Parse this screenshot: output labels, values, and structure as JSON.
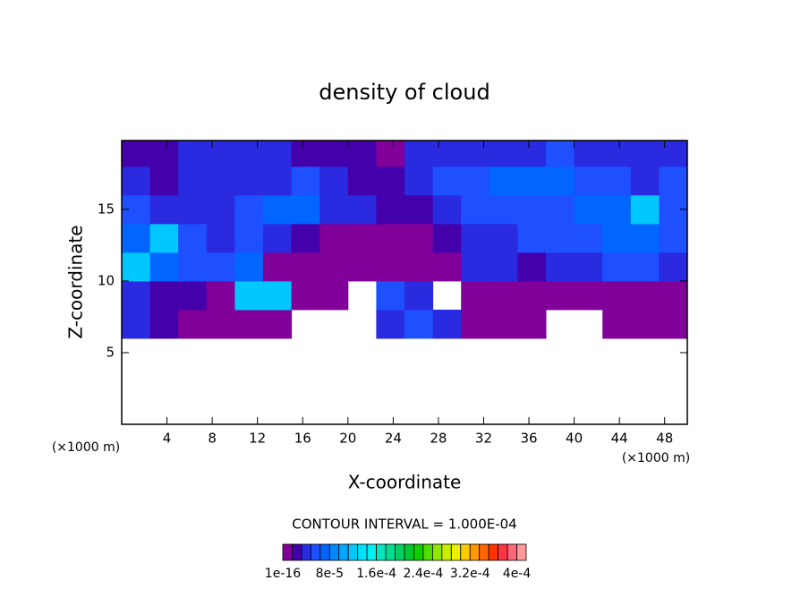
{
  "chart_data": {
    "type": "contour",
    "title": "density of cloud",
    "xlabel": "X-coordinate",
    "ylabel": "Z-coordinate",
    "x_unit": "(×1000 m)",
    "y_unit": "(×1000 m)",
    "xlim": [
      0,
      50
    ],
    "ylim": [
      0,
      19.8
    ],
    "xticks": [
      4,
      8,
      12,
      16,
      20,
      24,
      28,
      32,
      36,
      40,
      44,
      48
    ],
    "yticks": [
      5,
      10,
      15
    ],
    "x": [
      1.25,
      3.75,
      6.25,
      8.75,
      11.25,
      13.75,
      16.25,
      18.75,
      21.25,
      23.75,
      26.25,
      28.75,
      31.25,
      33.75,
      36.25,
      38.75,
      41.25,
      43.75,
      46.25,
      48.75
    ],
    "y": [
      1,
      3,
      5,
      7,
      9,
      11,
      13,
      15,
      17,
      19
    ],
    "z": [
      [
        null,
        null,
        null,
        null,
        null,
        null,
        null,
        null,
        null,
        null,
        null,
        null,
        null,
        null,
        null,
        null,
        null,
        null,
        null,
        null
      ],
      [
        null,
        null,
        null,
        null,
        null,
        null,
        null,
        null,
        null,
        null,
        null,
        null,
        null,
        null,
        null,
        null,
        null,
        null,
        null,
        null
      ],
      [
        null,
        null,
        null,
        null,
        null,
        null,
        null,
        null,
        null,
        null,
        null,
        null,
        null,
        null,
        null,
        null,
        null,
        null,
        null,
        null
      ],
      [
        4e-05,
        2e-05,
        1e-16,
        1e-16,
        1e-16,
        1e-16,
        null,
        null,
        null,
        4e-05,
        6e-05,
        4e-05,
        1e-16,
        1e-16,
        1e-16,
        null,
        null,
        1e-16,
        1e-16,
        1e-16
      ],
      [
        4e-05,
        2e-05,
        2e-05,
        1e-16,
        0.00012,
        0.00012,
        1e-16,
        1e-16,
        null,
        6e-05,
        4e-05,
        null,
        1e-16,
        1e-16,
        1e-16,
        1e-16,
        1e-16,
        1e-16,
        1e-16,
        1e-16
      ],
      [
        0.00012,
        8e-05,
        6e-05,
        6e-05,
        8e-05,
        1e-16,
        1e-16,
        1e-16,
        1e-16,
        1e-16,
        1e-16,
        1e-16,
        4e-05,
        4e-05,
        2e-05,
        4e-05,
        4e-05,
        6e-05,
        6e-05,
        4e-05
      ],
      [
        8e-05,
        0.00012,
        6e-05,
        4e-05,
        6e-05,
        4e-05,
        2e-05,
        1e-16,
        1e-16,
        1e-16,
        1e-16,
        2e-05,
        4e-05,
        4e-05,
        6e-05,
        6e-05,
        6e-05,
        8e-05,
        8e-05,
        6e-05
      ],
      [
        6e-05,
        4e-05,
        4e-05,
        4e-05,
        6e-05,
        8e-05,
        8e-05,
        4e-05,
        4e-05,
        2e-05,
        2e-05,
        4e-05,
        6e-05,
        6e-05,
        6e-05,
        6e-05,
        8e-05,
        8e-05,
        0.00012,
        6e-05
      ],
      [
        4e-05,
        2e-05,
        4e-05,
        4e-05,
        4e-05,
        4e-05,
        6e-05,
        4e-05,
        2e-05,
        2e-05,
        4e-05,
        6e-05,
        6e-05,
        8e-05,
        8e-05,
        8e-05,
        6e-05,
        6e-05,
        4e-05,
        6e-05
      ],
      [
        2e-05,
        2e-05,
        4e-05,
        4e-05,
        4e-05,
        4e-05,
        2e-05,
        2e-05,
        2e-05,
        1e-16,
        4e-05,
        4e-05,
        4e-05,
        4e-05,
        4e-05,
        6e-05,
        4e-05,
        4e-05,
        4e-05,
        4e-05
      ]
    ],
    "contour_interval_label": "CONTOUR INTERVAL = 1.000E-04",
    "clim": [
      1e-16,
      0.000416
    ],
    "colors": [
      "#800099",
      "#4400aa",
      "#2a2ae0",
      "#1e50ff",
      "#0066ff",
      "#0088ff",
      "#00a8ff",
      "#00c8ff",
      "#00e0ff",
      "#00f0f0",
      "#00e8c0",
      "#00dd90",
      "#00d060",
      "#00c830",
      "#10cc00",
      "#50dd00",
      "#90e800",
      "#c8ee00",
      "#eeee00",
      "#ffcc00",
      "#ff9900",
      "#ff6600",
      "#ff3300",
      "#ff3344",
      "#ff6677",
      "#ff9999"
    ],
    "colorbar_ticks": [
      {
        "value": 1e-16,
        "label": "1e-16"
      },
      {
        "value": 8e-05,
        "label": "8e-5"
      },
      {
        "value": 0.00016,
        "label": "1.6e-4"
      },
      {
        "value": 0.00024,
        "label": "2.4e-4"
      },
      {
        "value": 0.00032,
        "label": "3.2e-4"
      },
      {
        "value": 0.0004,
        "label": "4e-4"
      }
    ]
  }
}
